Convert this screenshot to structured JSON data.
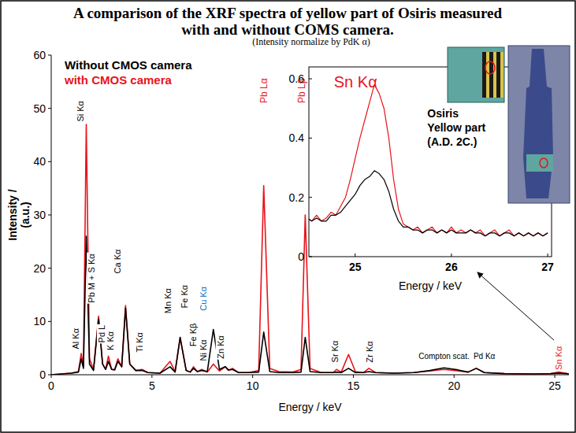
{
  "chart_data": [
    {
      "type": "line",
      "title": "A comparison of the XRF spectra of yellow part of Osiris measured with and without COMS camera.",
      "subtitle": "(Intensity normalize by PdK α)",
      "x_label": "Energy / keV",
      "y_label": "Intensity / (a.u.)",
      "x": [
        0,
        1.0,
        1.35,
        1.49,
        1.6,
        1.74,
        1.9,
        2.1,
        2.35,
        2.55,
        2.7,
        2.84,
        3.0,
        3.15,
        3.31,
        3.5,
        3.69,
        3.9,
        4.2,
        4.51,
        4.8,
        5.4,
        5.9,
        6.15,
        6.4,
        6.7,
        6.9,
        7.06,
        7.25,
        7.48,
        7.75,
        8.05,
        8.35,
        8.64,
        8.8,
        9.0,
        9.3,
        9.8,
        10.3,
        10.55,
        10.85,
        11.3,
        12.0,
        12.4,
        12.61,
        12.85,
        13.4,
        14.0,
        14.16,
        14.4,
        14.76,
        15.1,
        15.5,
        15.77,
        16.1,
        17.0,
        18.0,
        18.8,
        19.5,
        20.2,
        20.7,
        21.1,
        21.5,
        22.5,
        24.0,
        24.8,
        25.2,
        25.6,
        25.7
      ],
      "series": [
        {
          "name": "with CMOS camera",
          "color": "#e8141b",
          "values": [
            0,
            0.3,
            0.6,
            4,
            1.5,
            47,
            3,
            1,
            11,
            2,
            1,
            3.5,
            1,
            1,
            3,
            1.5,
            13,
            2,
            0.8,
            1,
            0.4,
            0.3,
            2.5,
            0.6,
            7,
            0.8,
            0.5,
            1.5,
            0.6,
            1,
            0.5,
            2,
            0.7,
            1.5,
            0.8,
            1.2,
            0.4,
            0.4,
            0.8,
            35.5,
            1.2,
            0.6,
            0.5,
            1,
            30,
            1.2,
            0.4,
            0.4,
            1,
            0.5,
            3.8,
            0.6,
            0.4,
            1.2,
            0.4,
            0.3,
            0.4,
            0.7,
            1.0,
            0.7,
            0.5,
            1.2,
            0.4,
            0.2,
            0.15,
            0.2,
            0.5,
            0.2,
            0.15
          ]
        },
        {
          "name": "Without CMOS camera",
          "color": "#000000",
          "values": [
            0,
            0.3,
            0.5,
            3,
            1.2,
            26,
            2,
            0.8,
            10.5,
            2,
            1,
            2.5,
            1,
            0.9,
            2.5,
            1.5,
            12.5,
            2,
            0.8,
            0.8,
            0.4,
            0.3,
            1.5,
            0.5,
            7,
            0.8,
            0.5,
            1.2,
            0.6,
            0.8,
            0.6,
            8.5,
            1.0,
            1.5,
            0.9,
            1.0,
            0.4,
            0.4,
            0.5,
            8,
            0.6,
            0.4,
            0.4,
            0.5,
            7,
            0.6,
            0.4,
            0.4,
            0.5,
            0.4,
            1.2,
            0.4,
            0.4,
            0.6,
            0.4,
            0.3,
            0.4,
            0.8,
            1.3,
            0.9,
            0.5,
            1.2,
            0.4,
            0.2,
            0.15,
            0.2,
            0.3,
            0.2,
            0.15
          ]
        }
      ],
      "xlim": [
        0,
        25.7
      ],
      "ylim": [
        0,
        60
      ],
      "xticks": [
        0,
        5,
        10,
        15,
        20,
        25
      ],
      "yticks": [
        0,
        10,
        20,
        30,
        40,
        50,
        60
      ],
      "grid": false,
      "legend": "top-left",
      "annotations": [
        {
          "text": "Al Kα",
          "x": 1.2,
          "y": 4.8,
          "vertical": true,
          "color": "#000000"
        },
        {
          "text": "Si Kα",
          "x": 1.45,
          "y": 47.5,
          "vertical": true,
          "color": "#000000"
        },
        {
          "text": "Pb M + S Kα",
          "x": 2.0,
          "y": 13.5,
          "vertical": true,
          "color": "#000000"
        },
        {
          "text": "Pd L",
          "x": 2.5,
          "y": 6.0,
          "vertical": true,
          "color": "#000000"
        },
        {
          "text": "K Kα",
          "x": 2.95,
          "y": 4.6,
          "vertical": true,
          "color": "#000000"
        },
        {
          "text": "Ca Kα",
          "x": 3.3,
          "y": 19,
          "vertical": true,
          "color": "#000000"
        },
        {
          "text": "Ti Kα",
          "x": 4.4,
          "y": 4.2,
          "vertical": true,
          "color": "#000000"
        },
        {
          "text": "Mn Kα",
          "x": 5.8,
          "y": 11.5,
          "vertical": true,
          "color": "#000000"
        },
        {
          "text": "Fe Kα",
          "x": 6.6,
          "y": 12.5,
          "vertical": true,
          "color": "#000000"
        },
        {
          "text": "Fe Kβ",
          "x": 7.05,
          "y": 5.3,
          "vertical": true,
          "color": "#000000"
        },
        {
          "text": "Ni Kα",
          "x": 7.55,
          "y": 2.6,
          "vertical": true,
          "color": "#000000"
        },
        {
          "text": "Cu Kα",
          "x": 7.55,
          "y": 12,
          "vertical": true,
          "color": "#0070c0"
        },
        {
          "text": "Zn Kα",
          "x": 8.4,
          "y": 3.0,
          "vertical": true,
          "color": "#000000"
        },
        {
          "text": "Pb Lα",
          "x": 10.55,
          "y": 51,
          "vertical": true,
          "color": "#e8141b"
        },
        {
          "text": "Pb Lβ",
          "x": 12.45,
          "y": 51,
          "vertical": true,
          "color": "#e8141b"
        },
        {
          "text": "Sr Kα",
          "x": 14.1,
          "y": 2.3,
          "vertical": true,
          "color": "#000000"
        },
        {
          "text": "Zr Kα",
          "x": 15.8,
          "y": 2.3,
          "vertical": true,
          "color": "#000000"
        },
        {
          "text": "Compton scat.",
          "x": 19.5,
          "y": 3.0,
          "vertical": false,
          "color": "#000000"
        },
        {
          "text": "Pd Kα",
          "x": 21.5,
          "y": 3.0,
          "vertical": false,
          "color": "#000000"
        },
        {
          "text": "Sn Kα",
          "x": 25.2,
          "y": 0.9,
          "vertical": true,
          "color": "#e8141b"
        }
      ]
    },
    {
      "type": "line",
      "x_label": "Energy / keV",
      "x": [
        24.5,
        24.55,
        24.6,
        24.65,
        24.7,
        24.75,
        24.8,
        24.85,
        24.9,
        24.95,
        25.0,
        25.05,
        25.1,
        25.15,
        25.2,
        25.25,
        25.3,
        25.35,
        25.4,
        25.45,
        25.5,
        25.55,
        25.6,
        25.65,
        25.7,
        25.75,
        25.8,
        25.85,
        25.9,
        25.95,
        26.0,
        26.05,
        26.1,
        26.15,
        26.2,
        26.25,
        26.3,
        26.35,
        26.4,
        26.45,
        26.5,
        26.55,
        26.6,
        26.65,
        26.7,
        26.75,
        26.8,
        26.85,
        26.9,
        26.95,
        27.0
      ],
      "series": [
        {
          "color": "#e8141b",
          "values": [
            0.13,
            0.12,
            0.14,
            0.12,
            0.13,
            0.15,
            0.14,
            0.17,
            0.2,
            0.26,
            0.33,
            0.4,
            0.46,
            0.52,
            0.58,
            0.55,
            0.5,
            0.4,
            0.26,
            0.16,
            0.11,
            0.1,
            0.09,
            0.1,
            0.08,
            0.09,
            0.1,
            0.08,
            0.09,
            0.08,
            0.1,
            0.08,
            0.09,
            0.08,
            0.09,
            0.08,
            0.09,
            0.07,
            0.08,
            0.09,
            0.07,
            0.08,
            0.09,
            0.07,
            0.08,
            0.07,
            0.08,
            0.07,
            0.08,
            0.07,
            0.08
          ]
        },
        {
          "color": "#000000",
          "values": [
            0.13,
            0.12,
            0.13,
            0.12,
            0.12,
            0.14,
            0.14,
            0.15,
            0.17,
            0.19,
            0.21,
            0.24,
            0.26,
            0.27,
            0.29,
            0.28,
            0.26,
            0.22,
            0.16,
            0.12,
            0.1,
            0.1,
            0.09,
            0.09,
            0.08,
            0.09,
            0.09,
            0.08,
            0.09,
            0.08,
            0.09,
            0.08,
            0.08,
            0.08,
            0.09,
            0.08,
            0.08,
            0.07,
            0.08,
            0.08,
            0.07,
            0.08,
            0.08,
            0.07,
            0.08,
            0.07,
            0.08,
            0.07,
            0.08,
            0.07,
            0.08
          ]
        }
      ],
      "xlim": [
        24.52,
        27.04
      ],
      "ylim": [
        0,
        0.64
      ],
      "xticks": [
        25,
        26,
        27
      ],
      "yticks": [
        0,
        0.2,
        0.4,
        0.6
      ],
      "grid": false,
      "annotations": [
        {
          "text": "Sn Kα",
          "x": 24.78,
          "y": 0.57,
          "color": "#e8141b"
        },
        {
          "lines": [
            "Osiris",
            "Yellow part",
            "(A.D. 2C.)"
          ],
          "x": 25.75,
          "y": 0.47,
          "color": "#000000"
        }
      ]
    }
  ]
}
